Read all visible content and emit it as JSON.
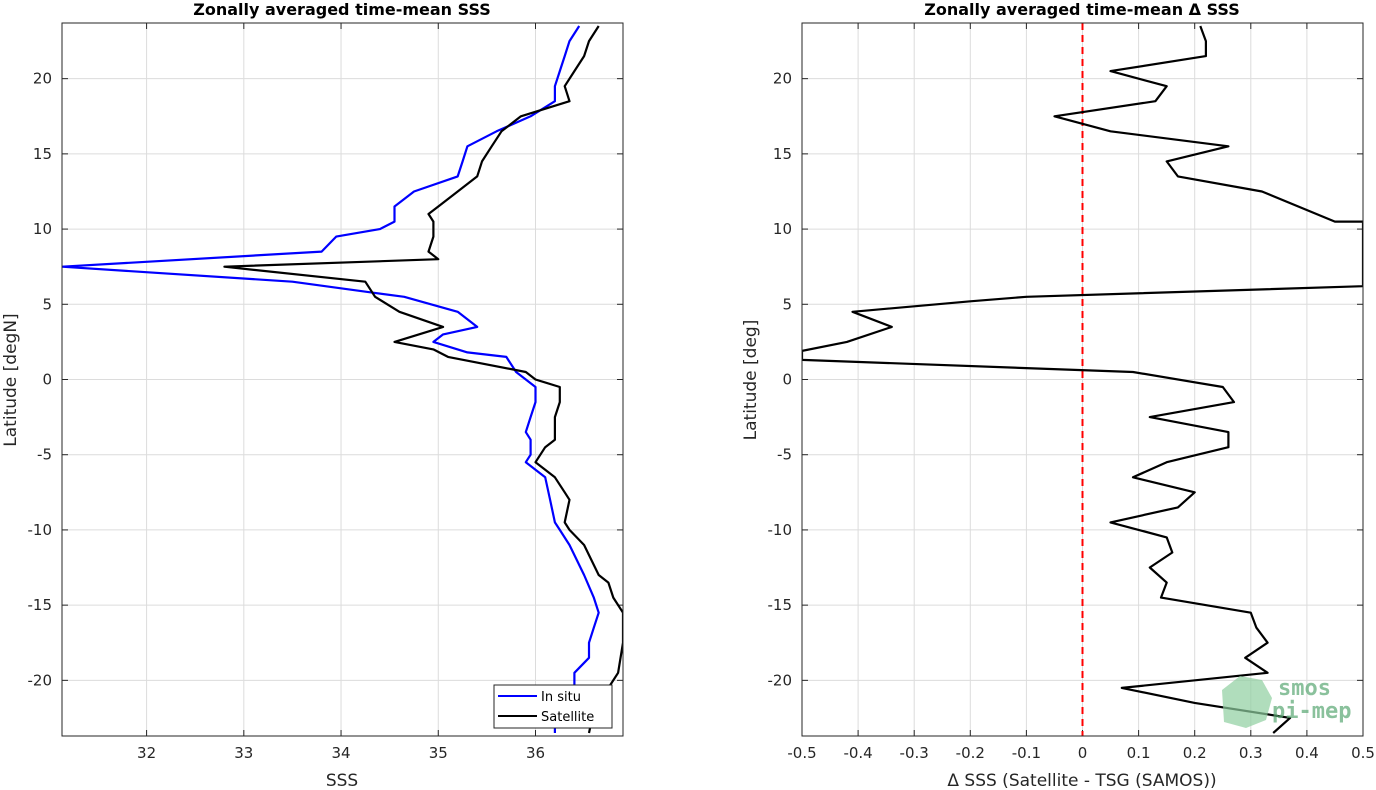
{
  "chart_data": [
    {
      "type": "line",
      "title": "Zonally averaged time-mean SSS",
      "xlabel": "SSS",
      "ylabel": "Latitude [degN]",
      "xlim": [
        31.13,
        36.9
      ],
      "ylim": [
        -23.7,
        23.7
      ],
      "xticks": [
        32,
        33,
        34,
        35,
        36
      ],
      "yticks": [
        -20,
        -15,
        -10,
        -5,
        0,
        5,
        10,
        15,
        20
      ],
      "grid": true,
      "legend_position": "bottom-right",
      "series": [
        {
          "name": "In situ",
          "color": "#0000ff",
          "points": [
            [
              36.2,
              -23.5
            ],
            [
              36.2,
              -22.0
            ],
            [
              36.3,
              -21.5
            ],
            [
              36.4,
              -20.5
            ],
            [
              36.4,
              -19.5
            ],
            [
              36.55,
              -18.5
            ],
            [
              36.55,
              -17.5
            ],
            [
              36.6,
              -16.5
            ],
            [
              36.65,
              -15.5
            ],
            [
              36.6,
              -14.5
            ],
            [
              36.5,
              -13.0
            ],
            [
              36.35,
              -11.0
            ],
            [
              36.25,
              -10.0
            ],
            [
              36.2,
              -9.5
            ],
            [
              36.15,
              -8.0
            ],
            [
              36.1,
              -6.5
            ],
            [
              36.0,
              -6.0
            ],
            [
              35.9,
              -5.5
            ],
            [
              35.95,
              -5.0
            ],
            [
              35.95,
              -4.0
            ],
            [
              35.9,
              -3.5
            ],
            [
              35.95,
              -2.5
            ],
            [
              36.0,
              -1.5
            ],
            [
              36.0,
              -0.5
            ],
            [
              35.8,
              0.5
            ],
            [
              35.7,
              1.5
            ],
            [
              35.3,
              1.8
            ],
            [
              34.95,
              2.5
            ],
            [
              35.05,
              3.0
            ],
            [
              35.4,
              3.5
            ],
            [
              35.2,
              4.5
            ],
            [
              34.65,
              5.5
            ],
            [
              34.3,
              5.8
            ],
            [
              33.5,
              6.5
            ],
            [
              31.13,
              7.5
            ],
            [
              33.8,
              8.5
            ],
            [
              33.95,
              9.5
            ],
            [
              34.4,
              10.0
            ],
            [
              34.55,
              10.5
            ],
            [
              34.55,
              11.5
            ],
            [
              34.75,
              12.5
            ],
            [
              35.2,
              13.5
            ],
            [
              35.25,
              14.5
            ],
            [
              35.3,
              15.5
            ],
            [
              35.6,
              16.5
            ],
            [
              35.95,
              17.5
            ],
            [
              36.2,
              18.5
            ],
            [
              36.2,
              19.5
            ],
            [
              36.25,
              20.5
            ],
            [
              36.3,
              21.5
            ],
            [
              36.35,
              22.5
            ],
            [
              36.45,
              23.5
            ]
          ]
        },
        {
          "name": "Satellite",
          "color": "#000000",
          "points": [
            [
              36.55,
              -23.5
            ],
            [
              36.6,
              -22.0
            ],
            [
              36.75,
              -20.5
            ],
            [
              36.85,
              -19.5
            ],
            [
              36.9,
              -17.5
            ],
            [
              36.9,
              -15.5
            ],
            [
              36.8,
              -14.5
            ],
            [
              36.75,
              -13.5
            ],
            [
              36.65,
              -13.0
            ],
            [
              36.5,
              -11.0
            ],
            [
              36.35,
              -10.0
            ],
            [
              36.3,
              -9.5
            ],
            [
              36.35,
              -8.0
            ],
            [
              36.3,
              -7.5
            ],
            [
              36.2,
              -6.5
            ],
            [
              36.1,
              -6.0
            ],
            [
              36.0,
              -5.5
            ],
            [
              36.1,
              -4.5
            ],
            [
              36.2,
              -4.0
            ],
            [
              36.2,
              -2.5
            ],
            [
              36.25,
              -1.5
            ],
            [
              36.25,
              -0.5
            ],
            [
              36.0,
              0.0
            ],
            [
              35.9,
              0.5
            ],
            [
              35.1,
              1.5
            ],
            [
              34.95,
              2.0
            ],
            [
              34.55,
              2.5
            ],
            [
              35.05,
              3.5
            ],
            [
              34.6,
              4.5
            ],
            [
              34.35,
              5.5
            ],
            [
              34.25,
              6.5
            ],
            [
              32.8,
              7.5
            ],
            [
              35.0,
              8.0
            ],
            [
              34.9,
              8.5
            ],
            [
              34.95,
              9.5
            ],
            [
              34.95,
              10.5
            ],
            [
              34.9,
              11.0
            ],
            [
              35.0,
              11.5
            ],
            [
              35.2,
              12.5
            ],
            [
              35.4,
              13.5
            ],
            [
              35.45,
              14.5
            ],
            [
              35.55,
              15.5
            ],
            [
              35.65,
              16.5
            ],
            [
              35.85,
              17.5
            ],
            [
              36.35,
              18.5
            ],
            [
              36.3,
              19.5
            ],
            [
              36.4,
              20.5
            ],
            [
              36.5,
              21.5
            ],
            [
              36.55,
              22.5
            ],
            [
              36.65,
              23.5
            ]
          ]
        }
      ]
    },
    {
      "type": "line",
      "title": "Zonally averaged time-mean Δ SSS",
      "xlabel": "Δ SSS (Satellite - TSG (SAMOS))",
      "ylabel": "Latitude [deg]",
      "xlim": [
        -0.5,
        0.5
      ],
      "ylim": [
        -23.7,
        23.7
      ],
      "xticks": [
        -0.5,
        -0.4,
        -0.3,
        -0.2,
        -0.1,
        0,
        0.1,
        0.2,
        0.3,
        0.4,
        0.5
      ],
      "xticklabels": [
        "-0.5",
        "-0.4",
        "-0.3",
        "-0.2",
        "-0.1",
        "0",
        "0.1",
        "0.2",
        "0.3",
        "0.4",
        "0.5"
      ],
      "yticks": [
        -20,
        -15,
        -10,
        -5,
        0,
        5,
        10,
        15,
        20
      ],
      "grid": true,
      "reference_line": {
        "x": 0,
        "color": "#ff0000",
        "style": "dashed"
      },
      "series": [
        {
          "color": "#000000",
          "points": [
            [
              0.34,
              -23.5
            ],
            [
              0.37,
              -22.5
            ],
            [
              0.2,
              -21.5
            ],
            [
              0.07,
              -20.5
            ],
            [
              0.33,
              -19.5
            ],
            [
              0.29,
              -18.5
            ],
            [
              0.33,
              -17.5
            ],
            [
              0.31,
              -16.5
            ],
            [
              0.3,
              -15.5
            ],
            [
              0.14,
              -14.5
            ],
            [
              0.15,
              -13.5
            ],
            [
              0.12,
              -12.5
            ],
            [
              0.16,
              -11.5
            ],
            [
              0.15,
              -10.5
            ],
            [
              0.05,
              -9.5
            ],
            [
              0.17,
              -8.5
            ],
            [
              0.2,
              -7.5
            ],
            [
              0.09,
              -6.5
            ],
            [
              0.15,
              -5.5
            ],
            [
              0.26,
              -4.5
            ],
            [
              0.26,
              -3.5
            ],
            [
              0.12,
              -2.5
            ],
            [
              0.27,
              -1.5
            ],
            [
              0.25,
              -0.5
            ],
            [
              0.09,
              0.5
            ],
            [
              -0.5,
              1.3
            ],
            [
              -0.5,
              1.9
            ],
            [
              -0.42,
              2.5
            ],
            [
              -0.34,
              3.5
            ],
            [
              -0.41,
              4.5
            ],
            [
              -0.2,
              5.2
            ],
            [
              -0.1,
              5.5
            ],
            [
              0.5,
              6.2
            ],
            [
              0.5,
              10.5
            ],
            [
              0.45,
              10.5
            ],
            [
              0.32,
              12.5
            ],
            [
              0.17,
              13.5
            ],
            [
              0.15,
              14.5
            ],
            [
              0.26,
              15.5
            ],
            [
              0.05,
              16.5
            ],
            [
              -0.05,
              17.5
            ],
            [
              0.13,
              18.5
            ],
            [
              0.15,
              19.5
            ],
            [
              0.05,
              20.5
            ],
            [
              0.22,
              21.5
            ],
            [
              0.22,
              22.5
            ],
            [
              0.21,
              23.5
            ]
          ]
        }
      ]
    }
  ],
  "watermark": {
    "line1": "smos",
    "line2": "pi-mep",
    "color": "#5aa873"
  }
}
